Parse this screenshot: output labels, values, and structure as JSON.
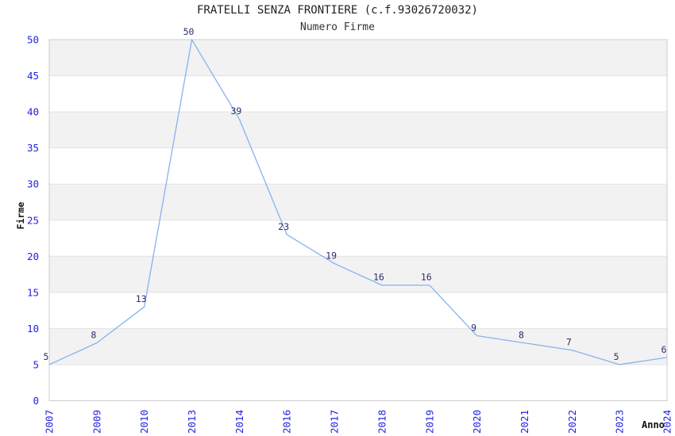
{
  "chart_data": {
    "type": "line",
    "title": "FRATELLI SENZA FRONTIERE (c.f.93026720032)",
    "subtitle": "Numero Firme",
    "xlabel": "Anno",
    "ylabel": "Firme",
    "categories": [
      "2007",
      "2009",
      "2010",
      "2013",
      "2014",
      "2016",
      "2017",
      "2018",
      "2019",
      "2020",
      "2021",
      "2022",
      "2023",
      "2024"
    ],
    "values": [
      5,
      8,
      13,
      50,
      39,
      23,
      19,
      16,
      16,
      9,
      8,
      7,
      5,
      6
    ],
    "ylim": [
      0,
      50
    ],
    "ytick_step": 5,
    "yticks": [
      0,
      5,
      10,
      15,
      20,
      25,
      30,
      35,
      40,
      45,
      50
    ],
    "grid": "horizontal-bands-alternating",
    "legend": "none",
    "point_labels_visible": true,
    "colors": {
      "line": "#85b3ef",
      "tick_label": "#2222dd",
      "point_label": "#2d2d6e",
      "band": "#f2f2f2",
      "gridline": "#e2e2e2",
      "border": "#cccccc",
      "title": "#222222",
      "axis_title": "#111111"
    }
  }
}
